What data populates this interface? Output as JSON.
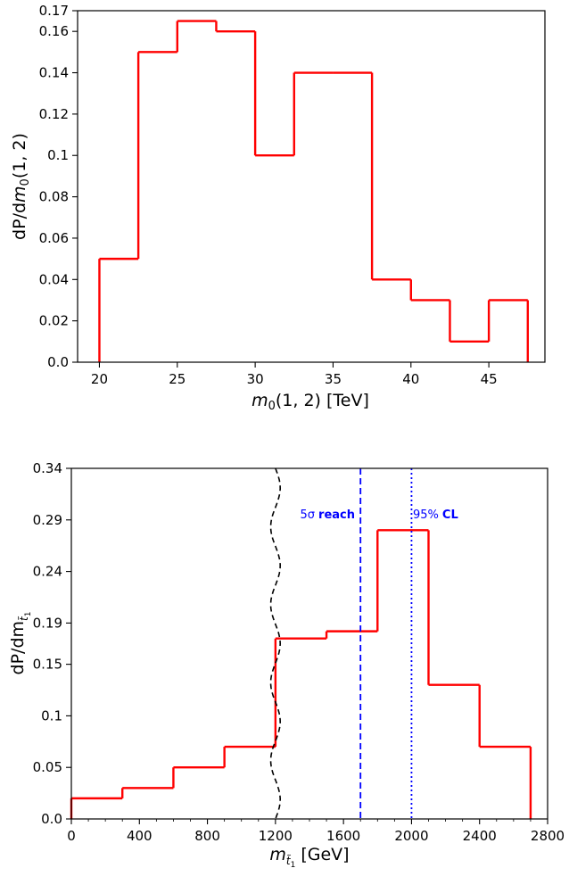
{
  "chart_data": [
    {
      "type": "histogram",
      "ylabel": "dP/dm₀(1, 2)",
      "xlabel": "m₀(1, 2) [TeV]",
      "xlim": [
        18.6,
        48.6
      ],
      "ylim": [
        0,
        0.17
      ],
      "xticks": [
        20,
        25,
        30,
        35,
        40,
        45
      ],
      "xtick_labels": [
        "20",
        "25",
        "30",
        "35",
        "40",
        "45"
      ],
      "yticks": [
        0,
        0.02,
        0.04,
        0.06,
        0.08,
        0.1,
        0.12,
        0.14,
        0.16,
        0.17
      ],
      "ytick_labels": [
        "0.0",
        "0.02",
        "0.04",
        "0.06",
        "0.08",
        "0.1",
        "0.12",
        "0.14",
        "0.16",
        "0.17"
      ],
      "bin_edges": [
        20,
        22.5,
        25,
        27.5,
        30,
        32.5,
        35,
        37.5,
        40,
        42.5,
        45,
        47.5
      ],
      "values": [
        0.05,
        0.15,
        0.165,
        0.16,
        0.1,
        0.14,
        0.14,
        0.04,
        0.03,
        0.01,
        0.03
      ],
      "line_color": "#ff0000",
      "grid": false
    },
    {
      "type": "histogram",
      "ylabel": "dP/dm",
      "xlabel": "[GeV]",
      "xlim": [
        0,
        2800
      ],
      "ylim": [
        0,
        0.34
      ],
      "xticks": [
        0,
        400,
        800,
        1200,
        1600,
        2000,
        2400,
        2800
      ],
      "xtick_labels": [
        "0",
        "400",
        "800",
        "1200",
        "1600",
        "2000",
        "2400",
        "2800"
      ],
      "yticks": [
        0,
        0.05,
        0.1,
        0.15,
        0.19,
        0.24,
        0.29,
        0.34
      ],
      "ytick_labels": [
        "0.0",
        "0.05",
        "0.1",
        "0.15",
        "0.19",
        "0.24",
        "0.29",
        "0.34"
      ],
      "bin_edges": [
        0,
        300,
        600,
        900,
        1200,
        1500,
        1800,
        2100,
        2400,
        2700
      ],
      "values": [
        0.02,
        0.03,
        0.05,
        0.07,
        0.175,
        0.182,
        0.28,
        0.13,
        0.07
      ],
      "line_color": "#ff0000",
      "vlines": [
        {
          "x": 1700,
          "style": "dashed",
          "color": "#0000ff",
          "label": "reach"
        },
        {
          "x": 2000,
          "style": "dotted",
          "color": "#0000ff",
          "label": "CL"
        }
      ],
      "vline_label_prefixes": [
        "5σ",
        "95%"
      ],
      "wavy_line": {
        "style": "dashed",
        "color": "#000000",
        "x_center": 1200,
        "amplitude": 28,
        "waves": 4.5
      },
      "grid": false
    }
  ]
}
